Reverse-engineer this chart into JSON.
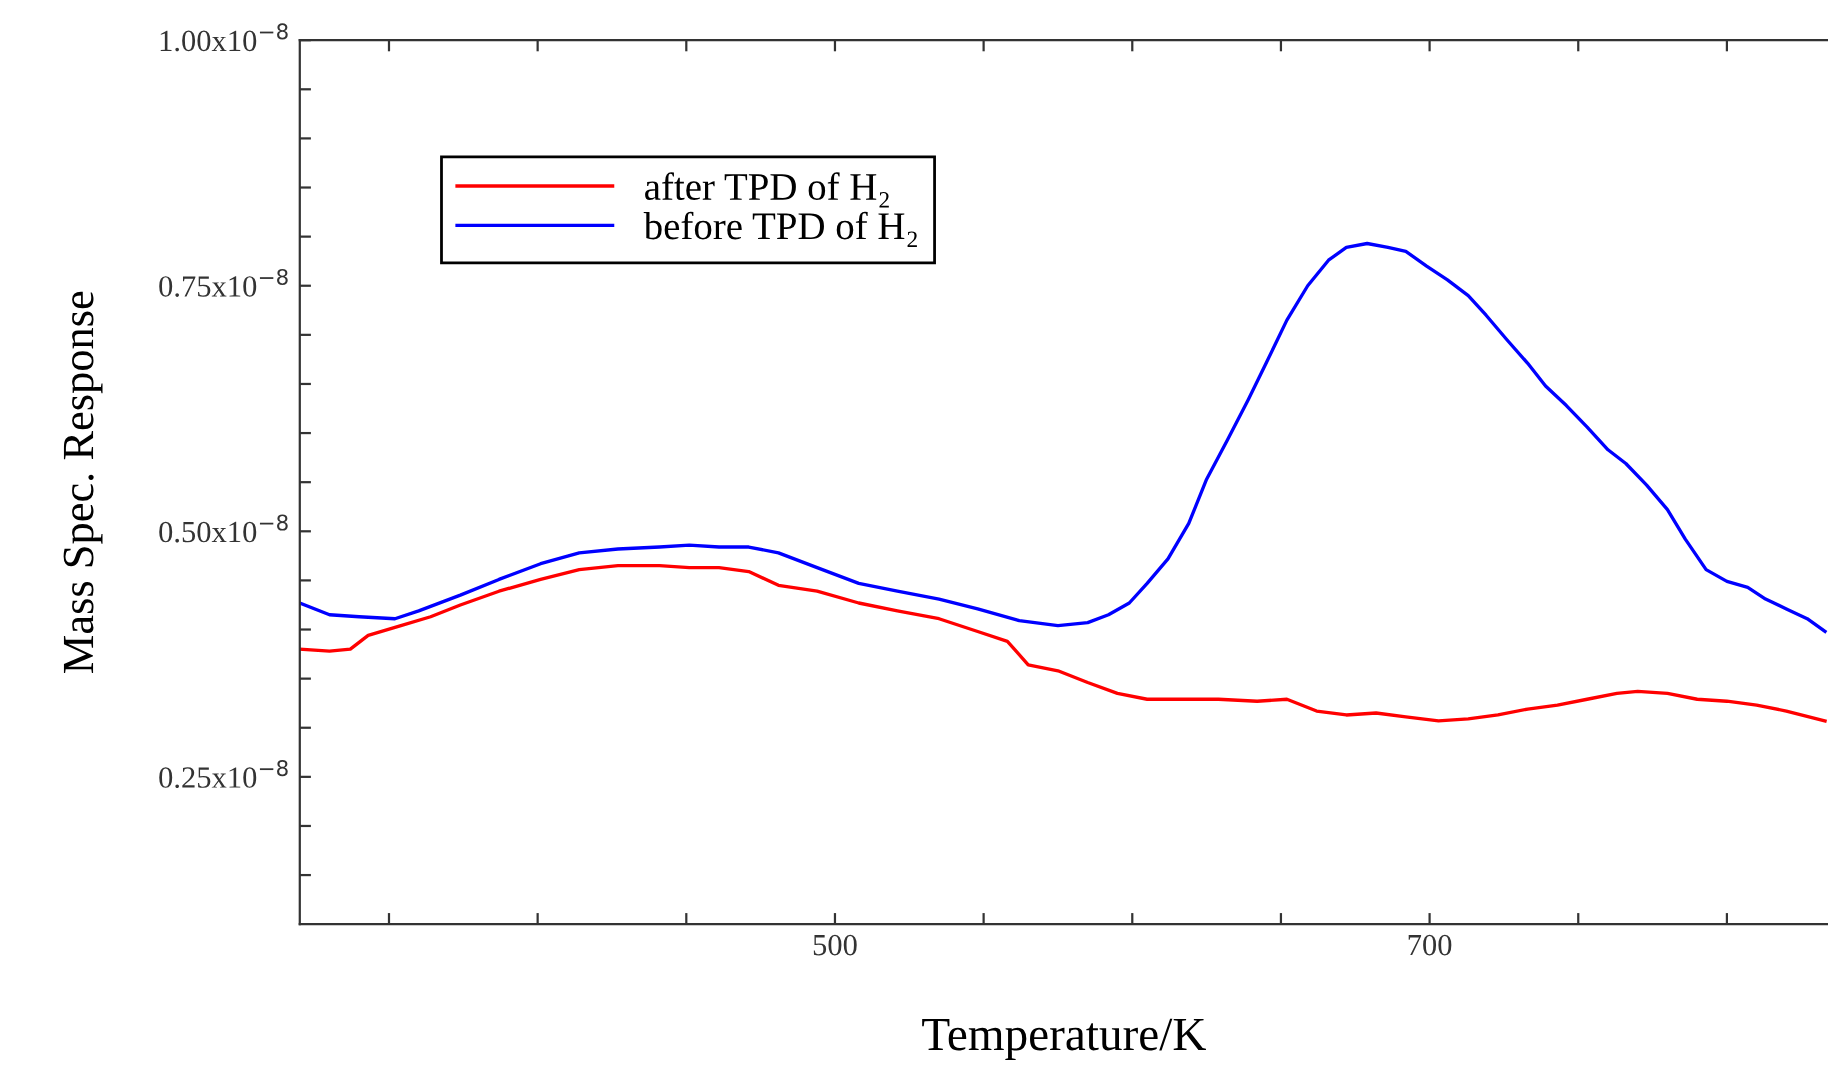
{
  "chart_data": {
    "type": "line",
    "xlabel": "Temperature/K",
    "ylabel": "Mass Spec. Response",
    "xlim": [
      320,
      834
    ],
    "ylim": [
      1e-09,
      1e-08
    ],
    "xticks": [
      {
        "value": 350,
        "label": null
      },
      {
        "value": 400,
        "label": null
      },
      {
        "value": 450,
        "label": null
      },
      500,
      {
        "value": 550,
        "label": null
      },
      {
        "value": 600,
        "label": null
      },
      {
        "value": 650,
        "label": null
      },
      700,
      {
        "value": 750,
        "label": null
      },
      {
        "value": 800,
        "label": null
      }
    ],
    "yticks": [
      {
        "value": 1.5e-09,
        "label": null
      },
      {
        "value": 2e-09,
        "label": null
      },
      {
        "value": 2.5e-09,
        "label": "0.25x10$^{−8}$"
      },
      {
        "value": 3e-09,
        "label": null
      },
      {
        "value": 3.5e-09,
        "label": null
      },
      {
        "value": 4e-09,
        "label": null
      },
      {
        "value": 4.5e-09,
        "label": null
      },
      {
        "value": 5e-09,
        "label": "0.50x10$^{−8}$"
      },
      {
        "value": 5.5e-09,
        "label": null
      },
      {
        "value": 6e-09,
        "label": null
      },
      {
        "value": 6.5e-09,
        "label": null
      },
      {
        "value": 7e-09,
        "label": null
      },
      {
        "value": 7.5e-09,
        "label": "0.75x10$^{−8}$"
      },
      {
        "value": 8e-09,
        "label": null
      },
      {
        "value": 8.5e-09,
        "label": null
      },
      {
        "value": 9e-09,
        "label": null
      },
      {
        "value": 9.5e-09,
        "label": null
      },
      {
        "value": 1e-08,
        "label": "1.00x10$^{−8}$"
      }
    ],
    "legend": "top left",
    "grid": false,
    "marker": "none",
    "line_style": "solid",
    "series": [
      {
        "name": "after TPD of H₂",
        "color": "#ff0000",
        "x": [
          320,
          330,
          337,
          343,
          354,
          364,
          374,
          387,
          401,
          414,
          427,
          441,
          451,
          461,
          471,
          481,
          494,
          508,
          521,
          535,
          548,
          558,
          565,
          575,
          585,
          595,
          605,
          615,
          629,
          642,
          652,
          662,
          672,
          682,
          692,
          703,
          713,
          723,
          733,
          743,
          753,
          763,
          770,
          780,
          790,
          800,
          810,
          820,
          833
        ],
        "values": [
          3.8e-09,
          3.78e-09,
          3.8e-09,
          3.94e-09,
          4.04e-09,
          4.13e-09,
          4.25e-09,
          4.39e-09,
          4.51e-09,
          4.61e-09,
          4.65e-09,
          4.65e-09,
          4.63e-09,
          4.63e-09,
          4.59e-09,
          4.45e-09,
          4.39e-09,
          4.27e-09,
          4.19e-09,
          4.11e-09,
          3.98e-09,
          3.88e-09,
          3.64e-09,
          3.58e-09,
          3.46e-09,
          3.35e-09,
          3.29e-09,
          3.29e-09,
          3.29e-09,
          3.27e-09,
          3.29e-09,
          3.17e-09,
          3.13e-09,
          3.15e-09,
          3.11e-09,
          3.07e-09,
          3.09e-09,
          3.13e-09,
          3.19e-09,
          3.23e-09,
          3.29e-09,
          3.35e-09,
          3.37e-09,
          3.35e-09,
          3.29e-09,
          3.27e-09,
          3.23e-09,
          3.17e-09,
          3.07e-09
        ]
      },
      {
        "name": "before TPD of H₂",
        "color": "#0000ff",
        "x": [
          320,
          330,
          340,
          352,
          360,
          374,
          387,
          401,
          414,
          427,
          441,
          451,
          461,
          471,
          481,
          494,
          508,
          521,
          535,
          548,
          562,
          575,
          585,
          592,
          599,
          605,
          612,
          619,
          625,
          632,
          639,
          645,
          652,
          659,
          666,
          672,
          679,
          686,
          692,
          699,
          706,
          713,
          719,
          726,
          733,
          739,
          746,
          753,
          760,
          766,
          773,
          780,
          786,
          793,
          800,
          807,
          813,
          820,
          827,
          833
        ],
        "values": [
          4.27e-09,
          4.15e-09,
          4.13e-09,
          4.11e-09,
          4.19e-09,
          4.35e-09,
          4.51e-09,
          4.67e-09,
          4.78e-09,
          4.82e-09,
          4.84e-09,
          4.86e-09,
          4.84e-09,
          4.84e-09,
          4.78e-09,
          4.63e-09,
          4.47e-09,
          4.39e-09,
          4.31e-09,
          4.21e-09,
          4.09e-09,
          4.04e-09,
          4.07e-09,
          4.15e-09,
          4.27e-09,
          4.47e-09,
          4.72e-09,
          5.08e-09,
          5.53e-09,
          5.93e-09,
          6.34e-09,
          6.71e-09,
          7.15e-09,
          7.5e-09,
          7.76e-09,
          7.89e-09,
          7.93e-09,
          7.89e-09,
          7.85e-09,
          7.7e-09,
          7.56e-09,
          7.4e-09,
          7.2e-09,
          6.95e-09,
          6.71e-09,
          6.48e-09,
          6.28e-09,
          6.06e-09,
          5.83e-09,
          5.69e-09,
          5.47e-09,
          5.22e-09,
          4.92e-09,
          4.61e-09,
          4.49e-09,
          4.43e-09,
          4.31e-09,
          4.21e-09,
          4.11e-09,
          3.98e-09
        ]
      }
    ]
  }
}
